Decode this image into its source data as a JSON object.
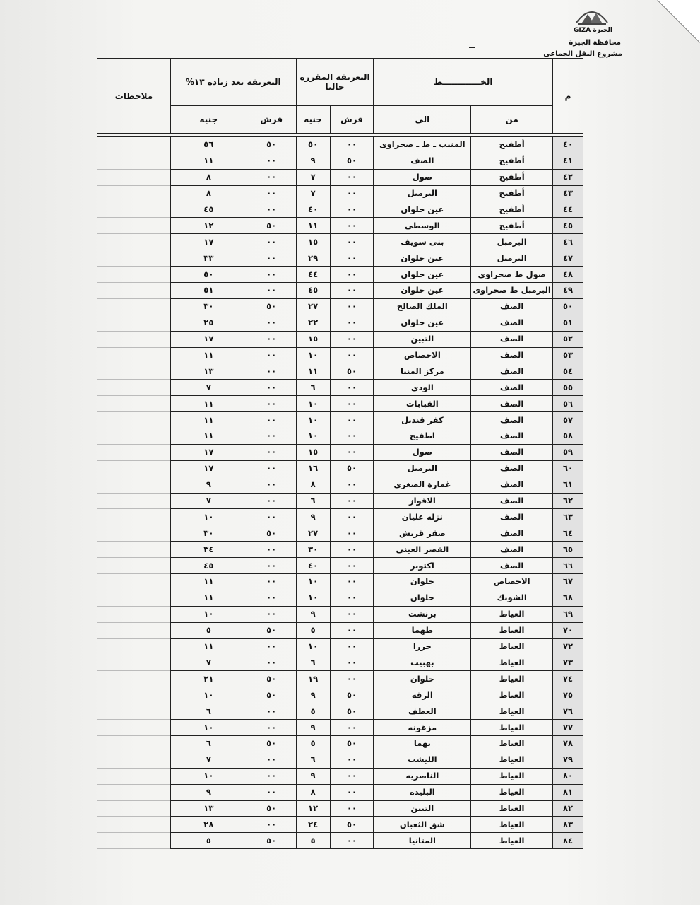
{
  "header": {
    "logo_caption": "الجيزة GIZA",
    "governorate": "محافظة الجيزة",
    "project": "مشروع النقل الجماعى"
  },
  "table": {
    "col_num": "م",
    "col_route": "الخـــــــــــــط",
    "col_from": "من",
    "col_to": "الى",
    "col_current": "التعريفه المقرره حاليا",
    "col_after": "التعريفه بعد زيادة ١٣%",
    "col_piaster": "قرش",
    "col_pound": "جنيه",
    "col_notes": "ملاحظات",
    "rows": [
      [
        "٤٠",
        "أطفيح",
        "المنيب ـ ط ـ صحراوى",
        "٠٠",
        "٥٠",
        "٥٠",
        "٥٦"
      ],
      [
        "٤١",
        "أطفيح",
        "الصف",
        "٥٠",
        "٩",
        "٠٠",
        "١١"
      ],
      [
        "٤٢",
        "أطفيح",
        "صول",
        "٠٠",
        "٧",
        "٠٠",
        "٨"
      ],
      [
        "٤٣",
        "أطفيح",
        "البرمبل",
        "٠٠",
        "٧",
        "٠٠",
        "٨"
      ],
      [
        "٤٤",
        "أطفيح",
        "عين حلوان",
        "٠٠",
        "٤٠",
        "٠٠",
        "٤٥"
      ],
      [
        "٤٥",
        "أطفيح",
        "الوسطى",
        "٠٠",
        "١١",
        "٥٠",
        "١٢"
      ],
      [
        "٤٦",
        "البرمبل",
        "بنى سويف",
        "٠٠",
        "١٥",
        "٠٠",
        "١٧"
      ],
      [
        "٤٧",
        "البرمبل",
        "عين حلوان",
        "٠٠",
        "٢٩",
        "٠٠",
        "٣٣"
      ],
      [
        "٤٨",
        "صول ط صحراوى",
        "عين حلوان",
        "٠٠",
        "٤٤",
        "٠٠",
        "٥٠"
      ],
      [
        "٤٩",
        "البرمبل ط صحراوى",
        "عين حلوان",
        "٠٠",
        "٤٥",
        "٠٠",
        "٥١"
      ],
      [
        "٥٠",
        "الصف",
        "الملك الصالح",
        "٠٠",
        "٢٧",
        "٥٠",
        "٣٠"
      ],
      [
        "٥١",
        "الصف",
        "عين حلوان",
        "٠٠",
        "٢٢",
        "٠٠",
        "٢٥"
      ],
      [
        "٥٢",
        "الصف",
        "التبين",
        "٠٠",
        "١٥",
        "٠٠",
        "١٧"
      ],
      [
        "٥٣",
        "الصف",
        "الاخصاص",
        "٠٠",
        "١٠",
        "٠٠",
        "١١"
      ],
      [
        "٥٤",
        "الصف",
        "مركز المنيا",
        "٥٠",
        "١١",
        "٠٠",
        "١٣"
      ],
      [
        "٥٥",
        "الصف",
        "الودى",
        "٠٠",
        "٦",
        "٠٠",
        "٧"
      ],
      [
        "٥٦",
        "الصف",
        "القبابات",
        "٠٠",
        "١٠",
        "٠٠",
        "١١"
      ],
      [
        "٥٧",
        "الصف",
        "كفر قنديل",
        "٠٠",
        "١٠",
        "٠٠",
        "١١"
      ],
      [
        "٥٨",
        "الصف",
        "اطفيح",
        "٠٠",
        "١٠",
        "٠٠",
        "١١"
      ],
      [
        "٥٩",
        "الصف",
        "صول",
        "٠٠",
        "١٥",
        "٠٠",
        "١٧"
      ],
      [
        "٦٠",
        "الصف",
        "البرمبل",
        "٥٠",
        "١٦",
        "٠٠",
        "١٧"
      ],
      [
        "٦١",
        "الصف",
        "غمازة الصغرى",
        "٠٠",
        "٨",
        "٠٠",
        "٩"
      ],
      [
        "٦٢",
        "الصف",
        "الاقواز",
        "٠٠",
        "٦",
        "٠٠",
        "٧"
      ],
      [
        "٦٣",
        "الصف",
        "نزله عليان",
        "٠٠",
        "٩",
        "٠٠",
        "١٠"
      ],
      [
        "٦٤",
        "الصف",
        "صقر قريش",
        "٠٠",
        "٢٧",
        "٥٠",
        "٣٠"
      ],
      [
        "٦٥",
        "الصف",
        "القصر العينى",
        "٠٠",
        "٣٠",
        "٠٠",
        "٣٤"
      ],
      [
        "٦٦",
        "الصف",
        "اكتوبر",
        "٠٠",
        "٤٠",
        "٠٠",
        "٤٥"
      ],
      [
        "٦٧",
        "الاخصاص",
        "حلوان",
        "٠٠",
        "١٠",
        "٠٠",
        "١١"
      ],
      [
        "٦٨",
        "الشوبك",
        "حلوان",
        "٠٠",
        "١٠",
        "٠٠",
        "١١"
      ],
      [
        "٦٩",
        "العياط",
        "برنشت",
        "٠٠",
        "٩",
        "٠٠",
        "١٠"
      ],
      [
        "٧٠",
        "العياط",
        "طهما",
        "٠٠",
        "٥",
        "٥٠",
        "٥"
      ],
      [
        "٧٢",
        "العياط",
        "جرزا",
        "٠٠",
        "١٠",
        "٠٠",
        "١١"
      ],
      [
        "٧٣",
        "العياط",
        "بهبيت",
        "٠٠",
        "٦",
        "٠٠",
        "٧"
      ],
      [
        "٧٤",
        "العياط",
        "حلوان",
        "٠٠",
        "١٩",
        "٥٠",
        "٢١"
      ],
      [
        "٧٥",
        "العياط",
        "الرقه",
        "٥٠",
        "٩",
        "٥٠",
        "١٠"
      ],
      [
        "٧٦",
        "العياط",
        "العطف",
        "٥٠",
        "٥",
        "٠٠",
        "٦"
      ],
      [
        "٧٧",
        "العياط",
        "مزغونه",
        "٠٠",
        "٩",
        "٠٠",
        "١٠"
      ],
      [
        "٧٨",
        "العياط",
        "بهما",
        "٥٠",
        "٥",
        "٥٠",
        "٦"
      ],
      [
        "٧٩",
        "العياط",
        "الليشت",
        "٠٠",
        "٦",
        "٠٠",
        "٧"
      ],
      [
        "٨٠",
        "العياط",
        "الناصريه",
        "٠٠",
        "٩",
        "٠٠",
        "١٠"
      ],
      [
        "٨١",
        "العياط",
        "البليده",
        "٠٠",
        "٨",
        "٠٠",
        "٩"
      ],
      [
        "٨٢",
        "العياط",
        "التبين",
        "٠٠",
        "١٢",
        "٥٠",
        "١٣"
      ],
      [
        "٨٣",
        "العياط",
        "شق الثعبان",
        "٥٠",
        "٢٤",
        "٠٠",
        "٢٨"
      ],
      [
        "٨٤",
        "العياط",
        "المتانيا",
        "٠٠",
        "٥",
        "٥٠",
        "٥"
      ]
    ]
  }
}
